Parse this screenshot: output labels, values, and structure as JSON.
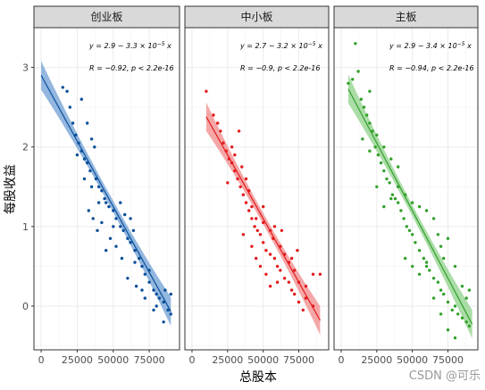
{
  "chart_data": {
    "type": "scatter",
    "facets": [
      {
        "label": "创业板",
        "color": "#0b4f9a",
        "band_color": "#6f9fd4",
        "equation": "y = 2.9 − 3.3 × 10",
        "equation_exp": "−5",
        "equation_tail": " x",
        "corr": "R = −0.92, p < 2.2e-16",
        "fit": {
          "intercept": 2.9,
          "slope": -3.3e-05,
          "x_range": [
            0,
            90000
          ]
        },
        "points": [
          [
            15000,
            2.75
          ],
          [
            18000,
            2.7
          ],
          [
            20000,
            2.5
          ],
          [
            22000,
            2.3
          ],
          [
            24000,
            2.15
          ],
          [
            26000,
            2.05
          ],
          [
            28000,
            1.95
          ],
          [
            30000,
            1.85
          ],
          [
            32000,
            1.8
          ],
          [
            34000,
            1.7
          ],
          [
            35000,
            2.1
          ],
          [
            37000,
            2.0
          ],
          [
            38000,
            1.6
          ],
          [
            40000,
            1.5
          ],
          [
            42000,
            1.45
          ],
          [
            44000,
            1.35
          ],
          [
            45000,
            1.3
          ],
          [
            47000,
            1.25
          ],
          [
            50000,
            1.2
          ],
          [
            52000,
            1.1
          ],
          [
            55000,
            1.0
          ],
          [
            57000,
            0.95
          ],
          [
            60000,
            0.85
          ],
          [
            62000,
            0.8
          ],
          [
            65000,
            0.7
          ],
          [
            68000,
            0.6
          ],
          [
            70000,
            0.5
          ],
          [
            72000,
            0.4
          ],
          [
            75000,
            0.3
          ],
          [
            78000,
            0.2
          ],
          [
            80000,
            0.15
          ],
          [
            82000,
            0.1
          ],
          [
            85000,
            0.05
          ],
          [
            88000,
            -0.05
          ],
          [
            90000,
            -0.1
          ],
          [
            25000,
            1.9
          ],
          [
            30000,
            1.6
          ],
          [
            33000,
            1.2
          ],
          [
            36000,
            1.1
          ],
          [
            39000,
            0.95
          ],
          [
            42000,
            1.05
          ],
          [
            55000,
            1.3
          ],
          [
            58000,
            1.15
          ],
          [
            62000,
            1.1
          ],
          [
            65000,
            0.55
          ],
          [
            70000,
            0.2
          ],
          [
            75000,
            0.45
          ],
          [
            80000,
            0.0
          ],
          [
            85000,
            -0.2
          ],
          [
            90000,
            0.15
          ],
          [
            28000,
            2.6
          ],
          [
            32000,
            2.3
          ],
          [
            48000,
            0.85
          ],
          [
            52000,
            0.75
          ],
          [
            60000,
            0.35
          ],
          [
            66000,
            0.25
          ],
          [
            72000,
            0.1
          ],
          [
            78000,
            -0.05
          ],
          [
            86000,
            0.2
          ],
          [
            45000,
            0.7
          ],
          [
            35000,
            1.5
          ],
          [
            40000,
            1.3
          ],
          [
            50000,
            1.0
          ],
          [
            56000,
            0.6
          ],
          [
            64000,
            0.95
          ]
        ]
      },
      {
        "label": "中小板",
        "color": "#e31a1c",
        "band_color": "#f28a8a",
        "equation": "y = 2.7 − 3.2 × 10",
        "equation_exp": "−5",
        "equation_tail": " x",
        "corr": "R = −0.9, p < 2.2e-16",
        "fit": {
          "intercept": 2.7,
          "slope": -3.2e-05,
          "x_range": [
            10000,
            90000
          ]
        },
        "points": [
          [
            10000,
            2.7
          ],
          [
            15000,
            2.4
          ],
          [
            18000,
            2.3
          ],
          [
            20000,
            2.2
          ],
          [
            22000,
            2.05
          ],
          [
            24000,
            1.95
          ],
          [
            26000,
            1.85
          ],
          [
            28000,
            1.8
          ],
          [
            30000,
            1.7
          ],
          [
            32000,
            1.6
          ],
          [
            34000,
            1.5
          ],
          [
            36000,
            1.4
          ],
          [
            38000,
            1.3
          ],
          [
            40000,
            1.2
          ],
          [
            42000,
            1.1
          ],
          [
            44000,
            1.0
          ],
          [
            46000,
            0.95
          ],
          [
            48000,
            0.9
          ],
          [
            50000,
            0.8
          ],
          [
            52000,
            0.7
          ],
          [
            55000,
            0.65
          ],
          [
            58000,
            0.6
          ],
          [
            60000,
            0.5
          ],
          [
            62000,
            0.45
          ],
          [
            65000,
            0.35
          ],
          [
            68000,
            0.3
          ],
          [
            70000,
            0.2
          ],
          [
            72000,
            0.15
          ],
          [
            75000,
            0.05
          ],
          [
            78000,
            -0.05
          ],
          [
            80000,
            0.1
          ],
          [
            85000,
            0.0
          ],
          [
            90000,
            0.4
          ],
          [
            25000,
            1.55
          ],
          [
            30000,
            1.9
          ],
          [
            35000,
            1.75
          ],
          [
            38000,
            1.6
          ],
          [
            40000,
            1.45
          ],
          [
            42000,
            1.25
          ],
          [
            45000,
            1.1
          ],
          [
            50000,
            1.05
          ],
          [
            55000,
            0.95
          ],
          [
            58000,
            1.0
          ],
          [
            62000,
            0.75
          ],
          [
            65000,
            0.65
          ],
          [
            70000,
            0.6
          ],
          [
            72000,
            0.45
          ],
          [
            75000,
            0.3
          ],
          [
            80000,
            0.25
          ],
          [
            33000,
            2.2
          ],
          [
            28000,
            2.0
          ],
          [
            45000,
            0.6
          ],
          [
            48000,
            0.5
          ],
          [
            52000,
            0.4
          ],
          [
            55000,
            0.25
          ],
          [
            60000,
            0.3
          ],
          [
            68000,
            0.55
          ],
          [
            74000,
            0.7
          ],
          [
            85000,
            0.4
          ],
          [
            36000,
            0.9
          ],
          [
            42000,
            0.75
          ],
          [
            50000,
            1.25
          ],
          [
            57000,
            0.85
          ],
          [
            63000,
            0.95
          ]
        ]
      },
      {
        "label": "主板",
        "color": "#33a02c",
        "band_color": "#8fd18a",
        "equation": "y = 2.9 − 3.4 × 10",
        "equation_exp": "−5",
        "equation_tail": " x",
        "corr": "R = −0.94, p < 2.2e-16",
        "fit": {
          "intercept": 2.9,
          "slope": -3.4e-05,
          "x_range": [
            5000,
            92000
          ]
        },
        "points": [
          [
            5000,
            2.8
          ],
          [
            8000,
            2.85
          ],
          [
            10000,
            3.3
          ],
          [
            12000,
            2.95
          ],
          [
            14000,
            2.6
          ],
          [
            16000,
            2.5
          ],
          [
            18000,
            2.4
          ],
          [
            20000,
            2.3
          ],
          [
            22000,
            2.2
          ],
          [
            24000,
            2.0
          ],
          [
            26000,
            1.9
          ],
          [
            28000,
            1.8
          ],
          [
            30000,
            1.7
          ],
          [
            32000,
            1.6
          ],
          [
            34000,
            1.55
          ],
          [
            36000,
            1.4
          ],
          [
            38000,
            1.35
          ],
          [
            40000,
            1.3
          ],
          [
            42000,
            1.2
          ],
          [
            44000,
            1.1
          ],
          [
            46000,
            1.0
          ],
          [
            48000,
            0.95
          ],
          [
            50000,
            0.9
          ],
          [
            52000,
            0.8
          ],
          [
            55000,
            0.7
          ],
          [
            58000,
            0.6
          ],
          [
            60000,
            0.5
          ],
          [
            62000,
            0.45
          ],
          [
            65000,
            0.35
          ],
          [
            68000,
            0.3
          ],
          [
            70000,
            0.2
          ],
          [
            72000,
            0.15
          ],
          [
            75000,
            0.05
          ],
          [
            78000,
            -0.05
          ],
          [
            80000,
            0.0
          ],
          [
            82000,
            -0.1
          ],
          [
            85000,
            -0.15
          ],
          [
            88000,
            -0.2
          ],
          [
            90000,
            -0.25
          ],
          [
            15000,
            2.1
          ],
          [
            20000,
            1.95
          ],
          [
            25000,
            1.5
          ],
          [
            30000,
            1.25
          ],
          [
            35000,
            1.35
          ],
          [
            40000,
            1.5
          ],
          [
            45000,
            1.4
          ],
          [
            50000,
            1.3
          ],
          [
            55000,
            1.25
          ],
          [
            60000,
            1.2
          ],
          [
            65000,
            1.1
          ],
          [
            68000,
            0.9
          ],
          [
            70000,
            0.75
          ],
          [
            72000,
            0.6
          ],
          [
            75000,
            0.85
          ],
          [
            80000,
            0.5
          ],
          [
            85000,
            0.25
          ],
          [
            45000,
            0.6
          ],
          [
            50000,
            0.5
          ],
          [
            55000,
            0.4
          ],
          [
            60000,
            0.55
          ],
          [
            65000,
            0.1
          ],
          [
            70000,
            -0.1
          ],
          [
            75000,
            -0.3
          ],
          [
            80000,
            -0.4
          ],
          [
            88000,
            0.1
          ],
          [
            90000,
            0.2
          ],
          [
            20000,
            2.7
          ],
          [
            25000,
            2.15
          ],
          [
            30000,
            2.0
          ],
          [
            35000,
            1.85
          ],
          [
            40000,
            1.75
          ]
        ]
      }
    ],
    "xlabel": "总股本",
    "ylabel": "每股收益",
    "xlim": [
      -5000,
      96000
    ],
    "ylim": [
      -0.55,
      3.5
    ],
    "x_ticks": [
      0,
      25000,
      50000,
      75000
    ],
    "x_tick_labels": [
      "0",
      "25000",
      "50000",
      "75000"
    ],
    "y_ticks": [
      0,
      1,
      2,
      3
    ],
    "y_tick_labels": [
      "0",
      "1",
      "2",
      "3"
    ],
    "grid": true
  },
  "watermark": "CSDN @可乐"
}
